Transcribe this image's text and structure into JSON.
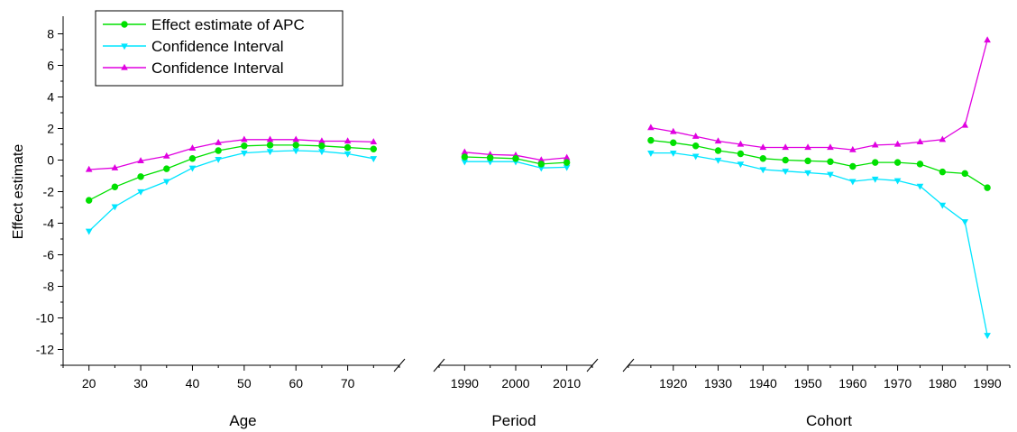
{
  "chart_data": {
    "type": "line",
    "ylabel": "Effect estimate",
    "ylim": [
      -13,
      9
    ],
    "yticks": [
      -12,
      -10,
      -8,
      -6,
      -4,
      -2,
      0,
      2,
      4,
      6,
      8
    ],
    "grid": false,
    "legend_position": "top-left",
    "legend": [
      {
        "name": "Effect estimate of APC",
        "color": "#00e000",
        "marker": "circle"
      },
      {
        "name": "Confidence Interval",
        "color": "#00e5ff",
        "marker": "triangle-down"
      },
      {
        "name": "Confidence Interval",
        "color": "#e000e0",
        "marker": "triangle-up"
      }
    ],
    "panels": [
      {
        "label": "Age",
        "xlim": [
          15,
          80
        ],
        "tick_labels": [
          20,
          30,
          40,
          50,
          60,
          70
        ],
        "x": [
          20,
          25,
          30,
          35,
          40,
          45,
          50,
          55,
          60,
          65,
          70,
          75
        ],
        "series": [
          {
            "name": "Effect estimate of APC",
            "values": [
              -2.55,
              -1.7,
              -1.05,
              -0.55,
              0.1,
              0.6,
              0.9,
              0.95,
              0.95,
              0.9,
              0.8,
              0.7
            ]
          },
          {
            "name": "Confidence Interval",
            "values": [
              -4.5,
              -2.95,
              -2.0,
              -1.35,
              -0.5,
              0.05,
              0.45,
              0.55,
              0.6,
              0.55,
              0.4,
              0.1
            ]
          },
          {
            "name": "Confidence Interval",
            "values": [
              -0.6,
              -0.5,
              -0.05,
              0.25,
              0.75,
              1.1,
              1.3,
              1.3,
              1.3,
              1.2,
              1.2,
              1.15
            ]
          }
        ]
      },
      {
        "label": "Period",
        "xlim": [
          1985,
          2015
        ],
        "tick_labels": [
          1990,
          2000,
          2010
        ],
        "x": [
          1990,
          1995,
          2000,
          2005,
          2010
        ],
        "series": [
          {
            "name": "Effect estimate of APC",
            "values": [
              0.2,
              0.15,
              0.1,
              -0.25,
              -0.15
            ]
          },
          {
            "name": "Confidence Interval",
            "values": [
              -0.1,
              -0.1,
              -0.1,
              -0.5,
              -0.45
            ]
          },
          {
            "name": "Confidence Interval",
            "values": [
              0.5,
              0.35,
              0.3,
              0.0,
              0.15
            ]
          }
        ]
      },
      {
        "label": "Cohort",
        "xlim": [
          1910,
          1995
        ],
        "tick_labels": [
          1920,
          1930,
          1940,
          1950,
          1960,
          1970,
          1980,
          1990
        ],
        "x": [
          1915,
          1920,
          1925,
          1930,
          1935,
          1940,
          1945,
          1950,
          1955,
          1960,
          1965,
          1970,
          1975,
          1980,
          1985,
          1990
        ],
        "series": [
          {
            "name": "Effect estimate of APC",
            "values": [
              1.25,
              1.1,
              0.9,
              0.6,
              0.4,
              0.1,
              0.0,
              -0.05,
              -0.1,
              -0.4,
              -0.15,
              -0.15,
              -0.25,
              -0.75,
              -0.85,
              -1.75
            ]
          },
          {
            "name": "Confidence Interval",
            "values": [
              0.45,
              0.45,
              0.25,
              0.0,
              -0.25,
              -0.6,
              -0.7,
              -0.8,
              -0.9,
              -1.35,
              -1.2,
              -1.3,
              -1.65,
              -2.85,
              -3.9,
              -11.1
            ]
          },
          {
            "name": "Confidence Interval",
            "values": [
              2.05,
              1.8,
              1.5,
              1.2,
              1.0,
              0.8,
              0.8,
              0.8,
              0.8,
              0.65,
              0.95,
              1.0,
              1.15,
              1.3,
              2.2,
              7.6
            ]
          }
        ]
      }
    ]
  }
}
